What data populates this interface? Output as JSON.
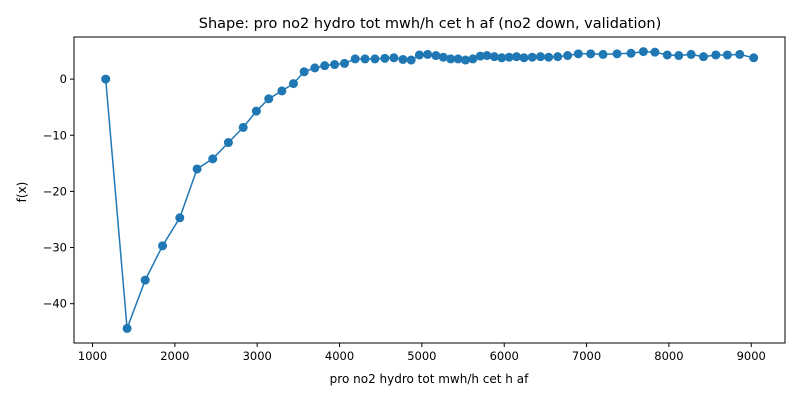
{
  "chart_data": {
    "type": "line",
    "title": "Shape: pro no2 hydro tot mwh/h cet h af (no2 down, validation)",
    "xlabel": "pro no2 hydro tot mwh/h cet h af",
    "ylabel": "f(x)",
    "xlim": [
      775,
      9410
    ],
    "ylim": [
      -47.0,
      7.5
    ],
    "xticks": [
      1000,
      2000,
      3000,
      4000,
      5000,
      6000,
      7000,
      8000,
      9000
    ],
    "yticks": [
      0,
      -10,
      -20,
      -30,
      -40
    ],
    "grid": false,
    "color": "#1f77b4",
    "series": [
      {
        "marker": "circle",
        "x": [
          1160,
          1420,
          1640,
          1850,
          2060,
          2270,
          2460,
          2650,
          2830,
          2990,
          3140,
          3300,
          3440,
          3570,
          3700,
          3820,
          3940,
          4060,
          4190,
          4310,
          4430,
          4550,
          4660,
          4770,
          4870,
          4970,
          5070,
          5170,
          5260,
          5350,
          5440,
          5530,
          5620,
          5710,
          5790,
          5880,
          5970,
          6060,
          6150,
          6240,
          6340,
          6440,
          6540,
          6650,
          6770,
          6900,
          7050,
          7200,
          7370,
          7540,
          7690,
          7830,
          7980,
          8120,
          8270,
          8420,
          8570,
          8710,
          8860,
          9030
        ],
        "y": [
          0.0,
          -44.4,
          -35.8,
          -29.7,
          -24.7,
          -16.0,
          -14.2,
          -11.3,
          -8.6,
          -5.7,
          -3.5,
          -2.1,
          -0.8,
          1.3,
          2.0,
          2.4,
          2.6,
          2.8,
          3.6,
          3.6,
          3.6,
          3.7,
          3.8,
          3.5,
          3.4,
          4.3,
          4.4,
          4.2,
          3.9,
          3.6,
          3.6,
          3.4,
          3.6,
          4.1,
          4.2,
          4.0,
          3.8,
          3.9,
          4.0,
          3.8,
          3.9,
          4.0,
          3.9,
          4.0,
          4.2,
          4.5,
          4.5,
          4.4,
          4.5,
          4.6,
          4.9,
          4.8,
          4.3,
          4.2,
          4.4,
          4.0,
          4.3,
          4.3,
          4.4,
          3.8
        ]
      }
    ]
  }
}
